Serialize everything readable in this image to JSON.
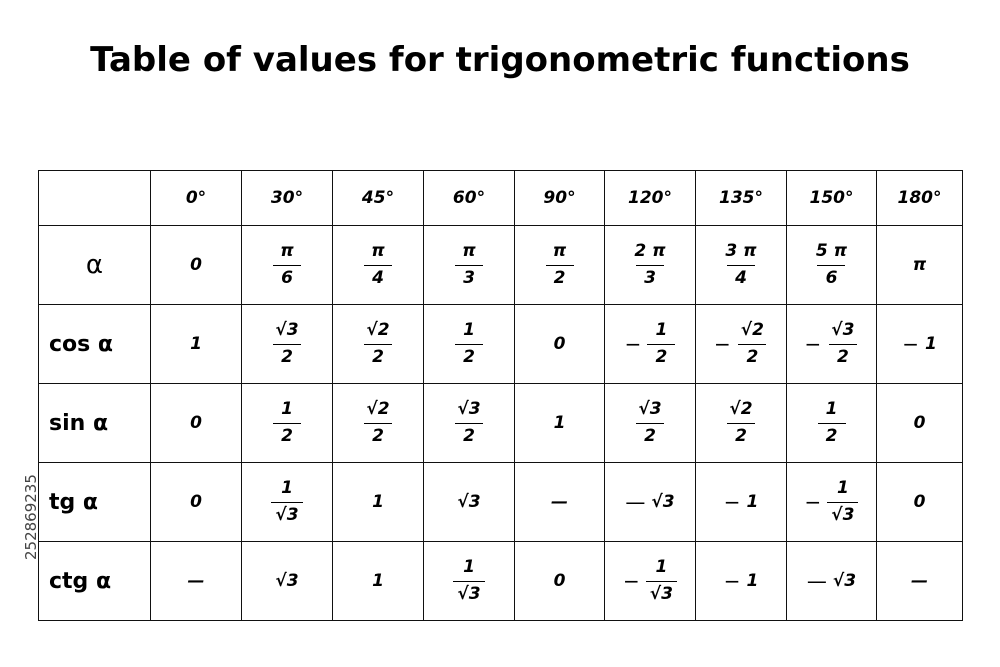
{
  "title": "Table of values for trigonometric functions",
  "watermark": "252869235",
  "table": {
    "columns": [
      "0°",
      "30°",
      "45°",
      "60°",
      "90°",
      "120°",
      "135°",
      "150°",
      "180°"
    ],
    "rows": [
      {
        "label": "α",
        "cells": [
          {
            "text": "0"
          },
          {
            "num": "π",
            "den": "6"
          },
          {
            "num": "π",
            "den": "4"
          },
          {
            "num": "π",
            "den": "3"
          },
          {
            "num": "π",
            "den": "2"
          },
          {
            "num": "2 π",
            "den": "3"
          },
          {
            "num": "3 π",
            "den": "4"
          },
          {
            "num": "5 π",
            "den": "6"
          },
          {
            "text": "π"
          }
        ]
      },
      {
        "label": "cos α",
        "cells": [
          {
            "text": "1"
          },
          {
            "num": "√3",
            "den": "2"
          },
          {
            "num": "√2",
            "den": "2"
          },
          {
            "num": "1",
            "den": "2"
          },
          {
            "text": "0"
          },
          {
            "sign": "−",
            "num": "1",
            "den": "2"
          },
          {
            "sign": "−",
            "num": "√2",
            "den": "2"
          },
          {
            "sign": "−",
            "num": "√3",
            "den": "2"
          },
          {
            "sign": "−",
            "text": "1"
          }
        ]
      },
      {
        "label": "sin α",
        "cells": [
          {
            "text": "0"
          },
          {
            "num": "1",
            "den": "2"
          },
          {
            "num": "√2",
            "den": "2"
          },
          {
            "num": "√3",
            "den": "2"
          },
          {
            "text": "1"
          },
          {
            "num": "√3",
            "den": "2"
          },
          {
            "num": "√2",
            "den": "2"
          },
          {
            "num": "1",
            "den": "2"
          },
          {
            "text": "0"
          }
        ]
      },
      {
        "label": "tg α",
        "cells": [
          {
            "text": "0"
          },
          {
            "num": "1",
            "den": "√3"
          },
          {
            "text": "1"
          },
          {
            "text": "√3"
          },
          {
            "text": "—"
          },
          {
            "sign": "—",
            "text": "√3"
          },
          {
            "sign": "−",
            "text": "1"
          },
          {
            "sign": "−",
            "num": "1",
            "den": "√3"
          },
          {
            "text": "0"
          }
        ]
      },
      {
        "label": "ctg α",
        "cells": [
          {
            "text": "—"
          },
          {
            "text": "√3"
          },
          {
            "text": "1"
          },
          {
            "num": "1",
            "den": "√3"
          },
          {
            "text": "0"
          },
          {
            "sign": "−",
            "num": "1",
            "den": "√3"
          },
          {
            "sign": "−",
            "text": "1"
          },
          {
            "sign": "—",
            "text": "√3"
          },
          {
            "text": "—"
          }
        ]
      }
    ]
  }
}
